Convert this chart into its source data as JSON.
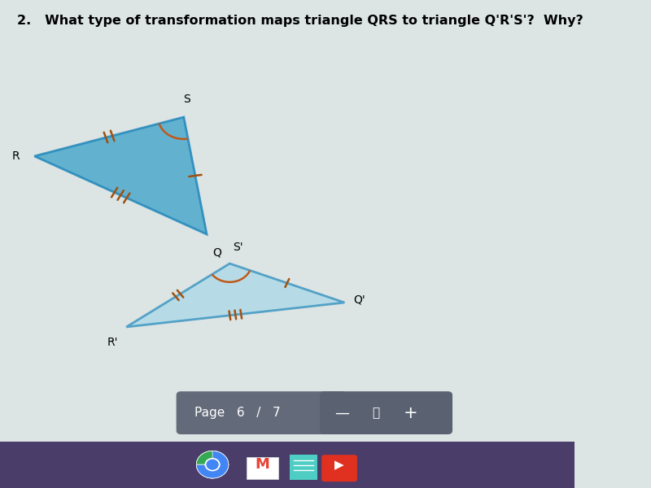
{
  "title": "2.   What type of transformation maps triangle QRS to triangle Q'R'S'?  Why?",
  "title_fontsize": 11.5,
  "bg_color": "#dce4e4",
  "page_bar_left_color": "#5a6070",
  "page_bar_right_color": "#6a7080",
  "page_text": "Page   6   /   7",
  "taskbar_color": "#4a3d6a",
  "triangle1": {
    "R": [
      0.06,
      0.68
    ],
    "S": [
      0.32,
      0.76
    ],
    "Q": [
      0.36,
      0.52
    ],
    "fill_color": "#4da8cc",
    "edge_color": "#2288bb",
    "alpha": 0.85
  },
  "triangle2": {
    "Sp": [
      0.4,
      0.46
    ],
    "Rp": [
      0.22,
      0.33
    ],
    "Qp": [
      0.6,
      0.38
    ],
    "fill_color": "#a8d8e8",
    "edge_color": "#2288bb",
    "alpha": 0.7
  },
  "tick_color": "#a05010",
  "arc_color": "#c05818"
}
